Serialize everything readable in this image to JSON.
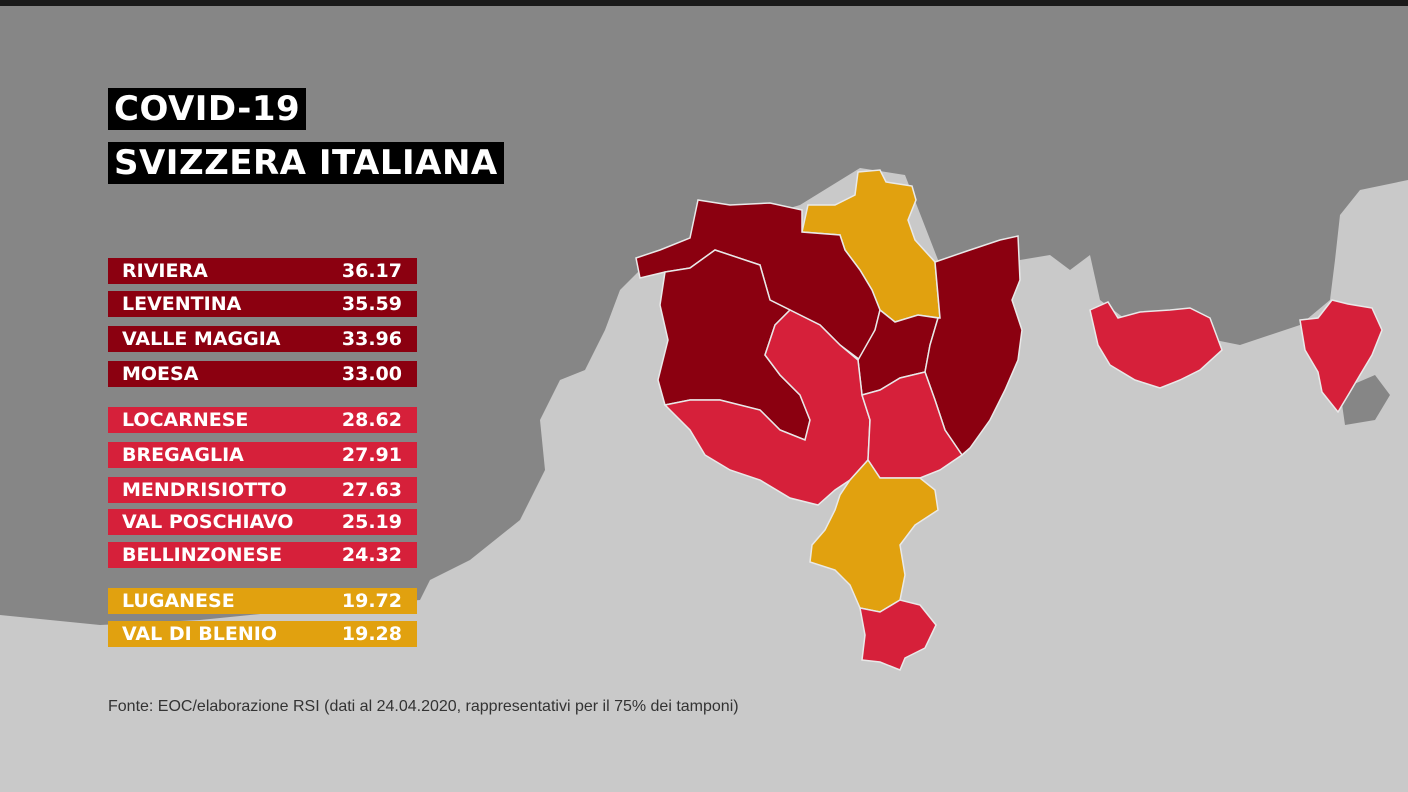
{
  "title": {
    "line1": "COVID-19",
    "line2": "SVIZZERA ITALIANA"
  },
  "colors": {
    "dark_red": "#8b0010",
    "red": "#d6203a",
    "amber": "#e1a10f",
    "land": "#868686",
    "water_area": "#c9c9c9"
  },
  "rows": [
    {
      "name": "RIVIERA",
      "value": "36.17",
      "level": "dark_red"
    },
    {
      "name": "LEVENTINA",
      "value": "35.59",
      "level": "dark_red"
    },
    {
      "name": "VALLE MAGGIA",
      "value": "33.96",
      "level": "dark_red"
    },
    {
      "name": "MOESA",
      "value": "33.00",
      "level": "dark_red"
    },
    {
      "name": "LOCARNESE",
      "value": "28.62",
      "level": "red"
    },
    {
      "name": "BREGAGLIA",
      "value": "27.91",
      "level": "red"
    },
    {
      "name": "MENDRISIOTTO",
      "value": "27.63",
      "level": "red"
    },
    {
      "name": "VAL POSCHIAVO",
      "value": "25.19",
      "level": "red"
    },
    {
      "name": "BELLINZONESE",
      "value": "24.32",
      "level": "red"
    },
    {
      "name": "LUGANESE",
      "value": "19.72",
      "level": "amber"
    },
    {
      "name": "VAL DI BLENIO",
      "value": "19.28",
      "level": "amber"
    }
  ],
  "source": "Fonte: EOC/elaborazione RSI (dati al 24.04.2020, rappresentativi per il 75% dei tamponi)"
}
